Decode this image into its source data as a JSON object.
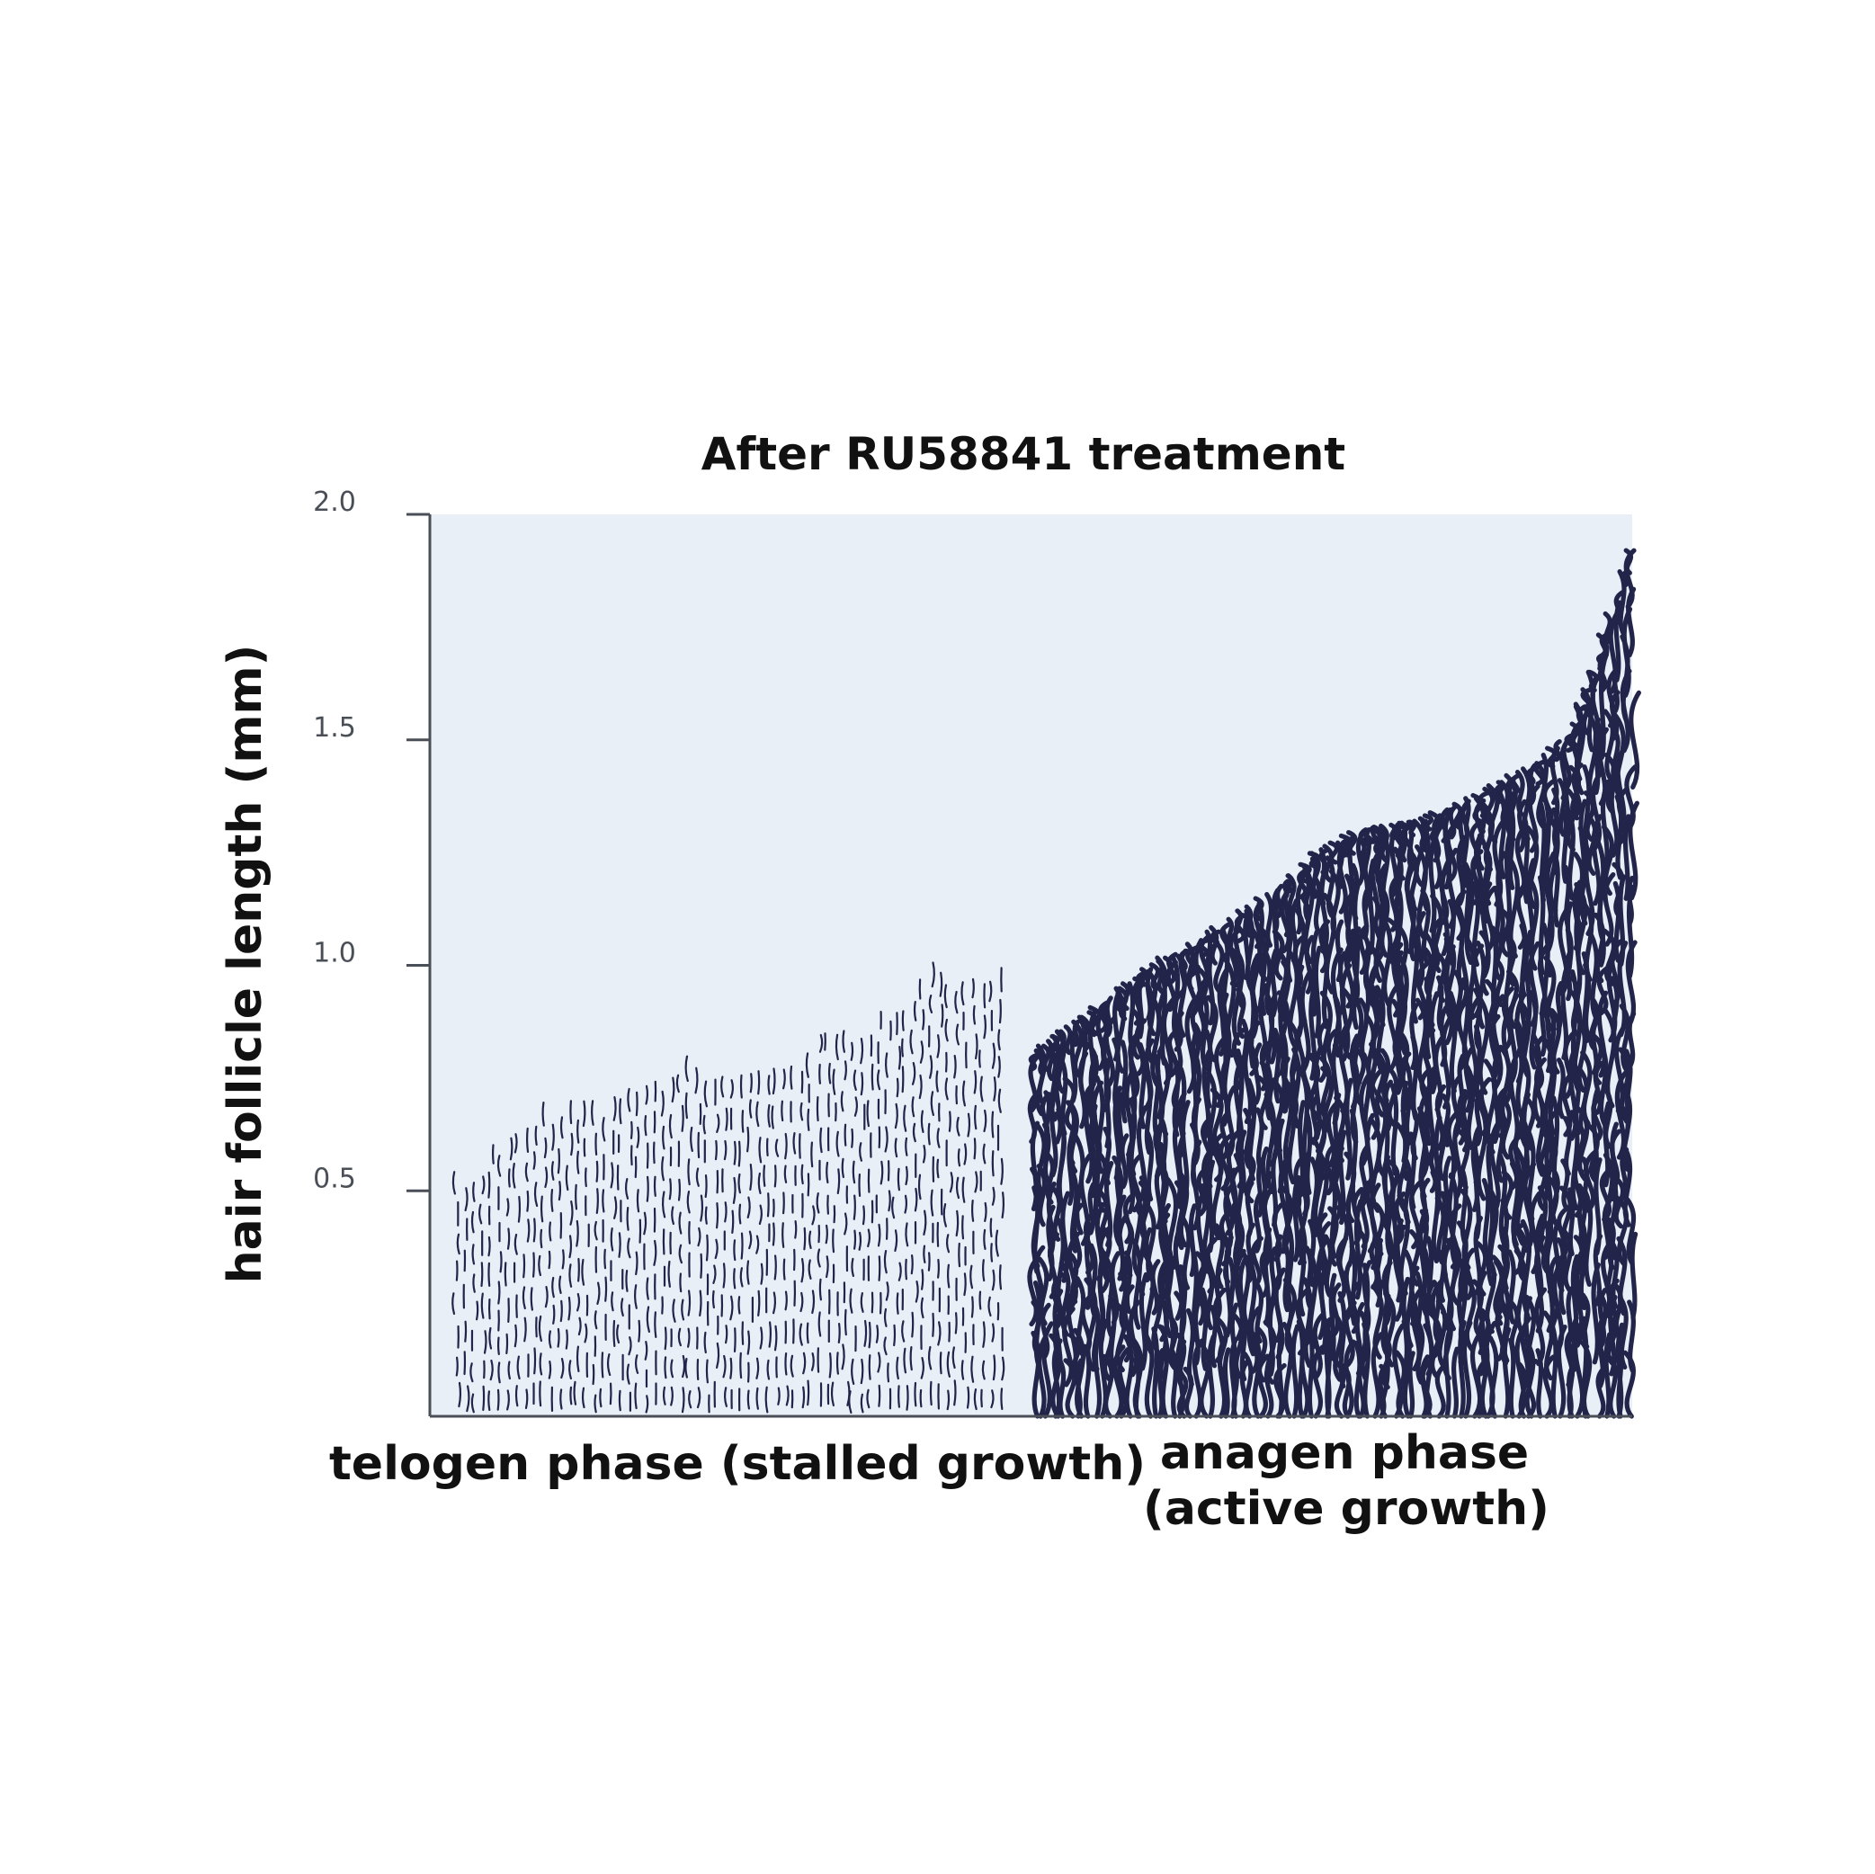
{
  "chart_data": {
    "type": "bar",
    "title": "After RU58841 treatment",
    "xlabel": "",
    "ylabel": "hair follicle length (mm)",
    "ylim": [
      0,
      2.0
    ],
    "yticks": [
      "0.5",
      "1.0",
      "1.5",
      "2.0"
    ],
    "grid": false,
    "legend": "none",
    "categories": [
      {
        "line1": "telogen phase (stalled growth)",
        "line2": ""
      },
      {
        "line1": "anagen phase",
        "line2": "(active growth)"
      }
    ],
    "series": [
      {
        "category": "telogen phase (stalled growth)",
        "style": "sparse short strokes",
        "profile": [
          {
            "x": 0.0,
            "y": 0.54
          },
          {
            "x": 0.05,
            "y": 0.59
          },
          {
            "x": 0.1,
            "y": 0.66
          },
          {
            "x": 0.15,
            "y": 0.7
          },
          {
            "x": 0.25,
            "y": 0.71
          },
          {
            "x": 0.3,
            "y": 0.74
          },
          {
            "x": 0.4,
            "y": 0.75
          },
          {
            "x": 0.42,
            "y": 0.8
          },
          {
            "x": 0.6,
            "y": 0.8
          },
          {
            "x": 0.65,
            "y": 0.84
          },
          {
            "x": 0.7,
            "y": 0.88
          },
          {
            "x": 0.75,
            "y": 0.9
          },
          {
            "x": 0.82,
            "y": 0.93
          },
          {
            "x": 0.85,
            "y": 1.0
          },
          {
            "x": 1.0,
            "y": 1.0
          }
        ]
      },
      {
        "category": "anagen phase (active growth)",
        "style": "dense long wavy strands",
        "profile": [
          {
            "x": 0.0,
            "y": 0.8
          },
          {
            "x": 0.05,
            "y": 0.85
          },
          {
            "x": 0.1,
            "y": 0.9
          },
          {
            "x": 0.15,
            "y": 0.95
          },
          {
            "x": 0.2,
            "y": 1.0
          },
          {
            "x": 0.27,
            "y": 1.05
          },
          {
            "x": 0.35,
            "y": 1.12
          },
          {
            "x": 0.42,
            "y": 1.18
          },
          {
            "x": 0.48,
            "y": 1.25
          },
          {
            "x": 0.55,
            "y": 1.3
          },
          {
            "x": 0.65,
            "y": 1.32
          },
          {
            "x": 0.75,
            "y": 1.38
          },
          {
            "x": 0.85,
            "y": 1.45
          },
          {
            "x": 0.9,
            "y": 1.52
          },
          {
            "x": 0.95,
            "y": 1.7
          },
          {
            "x": 1.0,
            "y": 1.92
          }
        ]
      }
    ],
    "colors": {
      "plot_background": "#e8eff6",
      "strand": "#22244a",
      "axis": "#4a4f57"
    }
  }
}
